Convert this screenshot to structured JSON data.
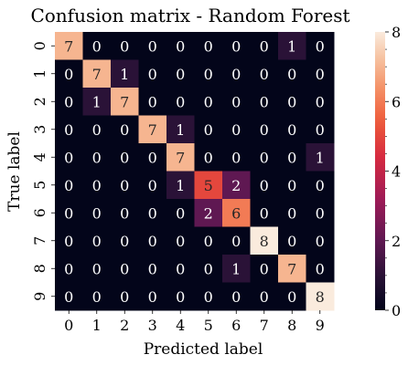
{
  "chart_data": {
    "type": "heatmap",
    "title": "Confusion matrix - Random Forest",
    "xlabel": "Predicted label",
    "ylabel": "True label",
    "x_categories": [
      "0",
      "1",
      "2",
      "3",
      "4",
      "5",
      "6",
      "7",
      "8",
      "9"
    ],
    "y_categories": [
      "0",
      "1",
      "2",
      "3",
      "4",
      "5",
      "6",
      "7",
      "8",
      "9"
    ],
    "matrix": [
      [
        7,
        0,
        0,
        0,
        0,
        0,
        0,
        0,
        1,
        0
      ],
      [
        0,
        7,
        1,
        0,
        0,
        0,
        0,
        0,
        0,
        0
      ],
      [
        0,
        1,
        7,
        0,
        0,
        0,
        0,
        0,
        0,
        0
      ],
      [
        0,
        0,
        0,
        7,
        1,
        0,
        0,
        0,
        0,
        0
      ],
      [
        0,
        0,
        0,
        0,
        7,
        0,
        0,
        0,
        0,
        1
      ],
      [
        0,
        0,
        0,
        0,
        1,
        5,
        2,
        0,
        0,
        0
      ],
      [
        0,
        0,
        0,
        0,
        0,
        2,
        6,
        0,
        0,
        0
      ],
      [
        0,
        0,
        0,
        0,
        0,
        0,
        0,
        8,
        0,
        0
      ],
      [
        0,
        0,
        0,
        0,
        0,
        0,
        1,
        0,
        7,
        0
      ],
      [
        0,
        0,
        0,
        0,
        0,
        0,
        0,
        0,
        0,
        8
      ]
    ],
    "colorbar": {
      "range": [
        0,
        8
      ],
      "ticks": [
        "0",
        "2",
        "4",
        "6",
        "8"
      ],
      "colormap": "rocket"
    }
  }
}
